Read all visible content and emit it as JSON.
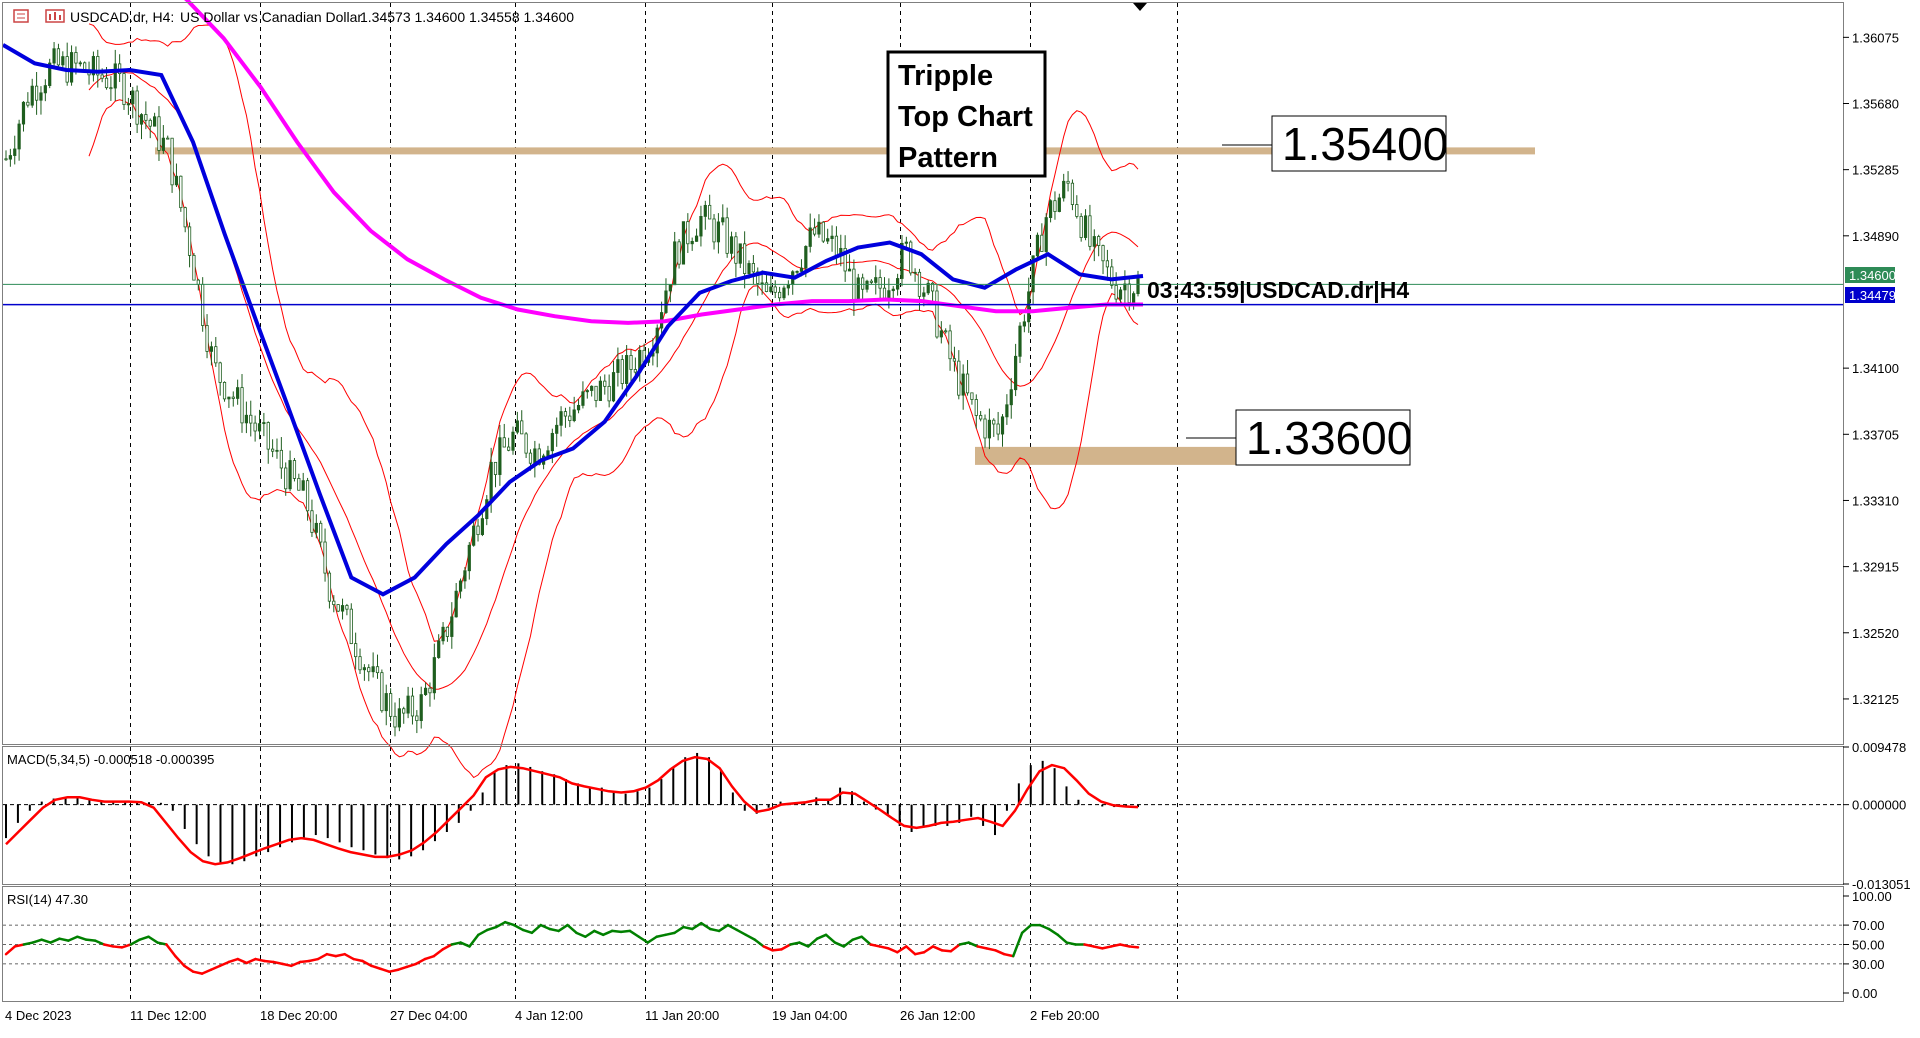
{
  "header": {
    "symbol": "USDCAD.dr, H4:",
    "description": "US Dollar vs Canadian Dollar",
    "ohlc": "1.34573 1.34600 1.34558 1.34600"
  },
  "annotations": {
    "pattern_label": [
      "Tripple",
      "Top Chart",
      "Pattern"
    ],
    "resistance_label": "1.35400",
    "support_label": "1.33600",
    "timer_label": "03:43:59|USDCAD.dr|H4"
  },
  "price_badges": {
    "current": "1.34600",
    "line": "1.34479"
  },
  "colors": {
    "bb": "#ff0000",
    "sma_fast": "#0000dd",
    "sma_slow": "#ff00ff",
    "zone": "#d2b48c",
    "rsi_high": "#008000",
    "rsi_low": "#ff0000"
  },
  "panes": {
    "macd_label": "MACD(5,34,5) -0.000518 -0.000395",
    "rsi_label": "RSI(14) 47.30"
  },
  "chart_data": [
    {
      "type": "line",
      "title": "USDCAD.dr, H4",
      "y_axis_ticks": [
        "1.36075",
        "1.35680",
        "1.35285",
        "1.34890",
        "1.34100",
        "1.33705",
        "1.33310",
        "1.32915",
        "1.32520",
        "1.32125"
      ],
      "ylim": [
        1.3185,
        1.3628
      ],
      "x_ticks": [
        "4 Dec 2023",
        "11 Dec 12:00",
        "18 Dec 20:00",
        "27 Dec 04:00",
        "4 Jan 12:00",
        "11 Jan 20:00",
        "19 Jan 04:00",
        "26 Jan 12:00",
        "2 Feb 20:00"
      ],
      "series": [
        {
          "values": [
            1.3535,
            1.3575,
            1.359,
            1.359,
            1.3585,
            1.358,
            1.356,
            1.354,
            1.348,
            1.341,
            1.339,
            1.337,
            1.335,
            1.333,
            1.328,
            1.325,
            1.322,
            1.32,
            1.321,
            1.325,
            1.33,
            1.335,
            1.337,
            1.336,
            1.338,
            1.339,
            1.34,
            1.341,
            1.343,
            1.348,
            1.35,
            1.349,
            1.347,
            1.345,
            1.347,
            1.349,
            1.348,
            1.345,
            1.346,
            1.348,
            1.345,
            1.341,
            1.338,
            1.337,
            1.344,
            1.35,
            1.352,
            1.348,
            1.346,
            1.346
          ]
        },
        {
          "values": [
            1.3603,
            1.3592,
            1.3588,
            1.3587,
            1.3588,
            1.3585,
            1.3545,
            1.349,
            1.3438,
            1.3387,
            1.3335,
            1.3285,
            1.3275,
            1.3285,
            1.3305,
            1.3322,
            1.3342,
            1.3355,
            1.3362,
            1.3378,
            1.3405,
            1.3435,
            1.3455,
            1.3462,
            1.3467,
            1.3464,
            1.3474,
            1.3482,
            1.3485,
            1.3478,
            1.3463,
            1.3458,
            1.3469,
            1.3478,
            1.3466,
            1.3463,
            1.3465
          ]
        },
        {
          "values": [
            1.3648,
            1.363,
            1.3607,
            1.3578,
            1.3545,
            1.3515,
            1.3492,
            1.3475,
            1.3463,
            1.3452,
            1.3445,
            1.3441,
            1.3438,
            1.3437,
            1.3438,
            1.3442,
            1.3445,
            1.3448,
            1.345,
            1.345,
            1.3451,
            1.345,
            1.3447,
            1.3444,
            1.3444,
            1.3446,
            1.3448,
            1.3448
          ]
        }
      ]
    },
    {
      "type": "bar",
      "title": "MACD(5,34,5) -0.000518 -0.000395",
      "y_axis_ticks": [
        "0.009478",
        "0.000000",
        "-0.013051"
      ],
      "ylim": [
        -0.01305,
        0.00948
      ],
      "x_ticks": [
        "4 Dec 2023",
        "11 Dec 12:00",
        "18 Dec 20:00",
        "27 Dec 04:00",
        "4 Jan 12:00",
        "11 Jan 20:00",
        "19 Jan 04:00",
        "26 Jan 12:00",
        "2 Feb 20:00"
      ],
      "series": [
        {
          "values": [
            -0.0055,
            -0.003,
            -0.001,
            0.0005,
            0.001,
            0.0012,
            0.0013,
            0.001,
            0.0005,
            0.0005,
            0.0006,
            0.0005,
            0.0004,
            0.0003,
            -0.001,
            -0.004,
            -0.0065,
            -0.0085,
            -0.0095,
            -0.0098,
            -0.0093,
            -0.0085,
            -0.0078,
            -0.007,
            -0.0062,
            -0.0055,
            -0.005,
            -0.0055,
            -0.0062,
            -0.007,
            -0.0075,
            -0.0082,
            -0.0088,
            -0.009,
            -0.0085,
            -0.0075,
            -0.006,
            -0.0045,
            -0.003,
            -0.001,
            0.002,
            0.0055,
            0.0065,
            0.0068,
            0.0062,
            0.0055,
            0.005,
            0.0042,
            0.0035,
            0.0028,
            0.0028,
            0.0022,
            0.0018,
            0.0022,
            0.0028,
            0.0042,
            0.0062,
            0.0078,
            0.0085,
            0.0078,
            0.0055,
            0.002,
            -0.001,
            -0.0015,
            -0.0005,
            0.0005,
            0.0003,
            0.0005,
            0.0012,
            0.0008,
            0.0028,
            0.0022,
            0.0005,
            -0.0008,
            -0.0018,
            -0.0035,
            -0.0045,
            -0.0038,
            -0.0035,
            -0.0035,
            -0.003,
            -0.002,
            -0.0035,
            -0.005,
            -0.001,
            0.0035,
            0.0065,
            0.0072,
            0.006,
            0.003,
            0.0008,
            0.0001,
            -0.0003,
            -0.0004,
            -0.0004,
            -0.0004
          ]
        },
        {
          "values": [
            -0.0065,
            -0.0045,
            -0.0025,
            -0.0005,
            0.0008,
            0.0012,
            0.0012,
            0.0008,
            0.0005,
            0.0005,
            0.0005,
            0.0004,
            -0.0005,
            -0.003,
            -0.0055,
            -0.0078,
            -0.0093,
            -0.0098,
            -0.0095,
            -0.0088,
            -0.008,
            -0.0072,
            -0.0065,
            -0.0058,
            -0.0055,
            -0.0058,
            -0.0065,
            -0.0072,
            -0.0078,
            -0.0082,
            -0.0086,
            -0.0086,
            -0.0082,
            -0.0075,
            -0.0062,
            -0.0045,
            -0.0025,
            -0.0005,
            0.0015,
            0.0045,
            0.0058,
            0.0062,
            0.006,
            0.0055,
            0.005,
            0.0045,
            0.0035,
            0.003,
            0.0026,
            0.0022,
            0.002,
            0.0022,
            0.0028,
            0.004,
            0.0058,
            0.0072,
            0.0078,
            0.0075,
            0.006,
            0.003,
            0.0005,
            -0.0012,
            -0.0008,
            0.0,
            0.0002,
            0.0004,
            0.0008,
            0.0008,
            0.002,
            0.0018,
            0.0005,
            -0.0008,
            -0.0022,
            -0.0035,
            -0.0038,
            -0.0035,
            -0.003,
            -0.0028,
            -0.0025,
            -0.0022,
            -0.0028,
            -0.0035,
            -0.001,
            0.0025,
            0.0055,
            0.0065,
            0.006,
            0.004,
            0.0018,
            0.0005,
            -0.0001,
            -0.0003,
            -0.0004
          ]
        }
      ]
    },
    {
      "type": "line",
      "title": "RSI(14) 47.30",
      "y_axis_ticks": [
        "100.00",
        "70.00",
        "50.00",
        "30.00",
        "0.00"
      ],
      "ylim": [
        0,
        100
      ],
      "x_ticks": [
        "4 Dec 2023",
        "11 Dec 12:00",
        "18 Dec 20:00",
        "27 Dec 04:00",
        "4 Jan 12:00",
        "11 Jan 20:00",
        "19 Jan 04:00",
        "26 Jan 12:00",
        "2 Feb 20:00"
      ],
      "series": [
        {
          "values": [
            40,
            48,
            50,
            52,
            55,
            52,
            56,
            54,
            58,
            55,
            54,
            50,
            48,
            47,
            50,
            55,
            58,
            52,
            50,
            38,
            28,
            22,
            20,
            24,
            28,
            32,
            35,
            31,
            35,
            33,
            32,
            30,
            28,
            32,
            33,
            35,
            40,
            38,
            40,
            35,
            33,
            28,
            25,
            22,
            24,
            27,
            30,
            35,
            38,
            45,
            50,
            52,
            48,
            60,
            65,
            68,
            73,
            70,
            65,
            62,
            70,
            66,
            64,
            70,
            62,
            58,
            64,
            60,
            64,
            63,
            64,
            58,
            52,
            58,
            60,
            62,
            68,
            66,
            72,
            66,
            64,
            70,
            65,
            60,
            55,
            48,
            44,
            45,
            50,
            52,
            48,
            56,
            60,
            52,
            48,
            55,
            58,
            50,
            48,
            46,
            42,
            48,
            40,
            42,
            48,
            44,
            43,
            50,
            52,
            48,
            46,
            44,
            40,
            38,
            62,
            70,
            70,
            66,
            60,
            52,
            50,
            50,
            48,
            46,
            48,
            50,
            48,
            47
          ]
        }
      ]
    }
  ]
}
